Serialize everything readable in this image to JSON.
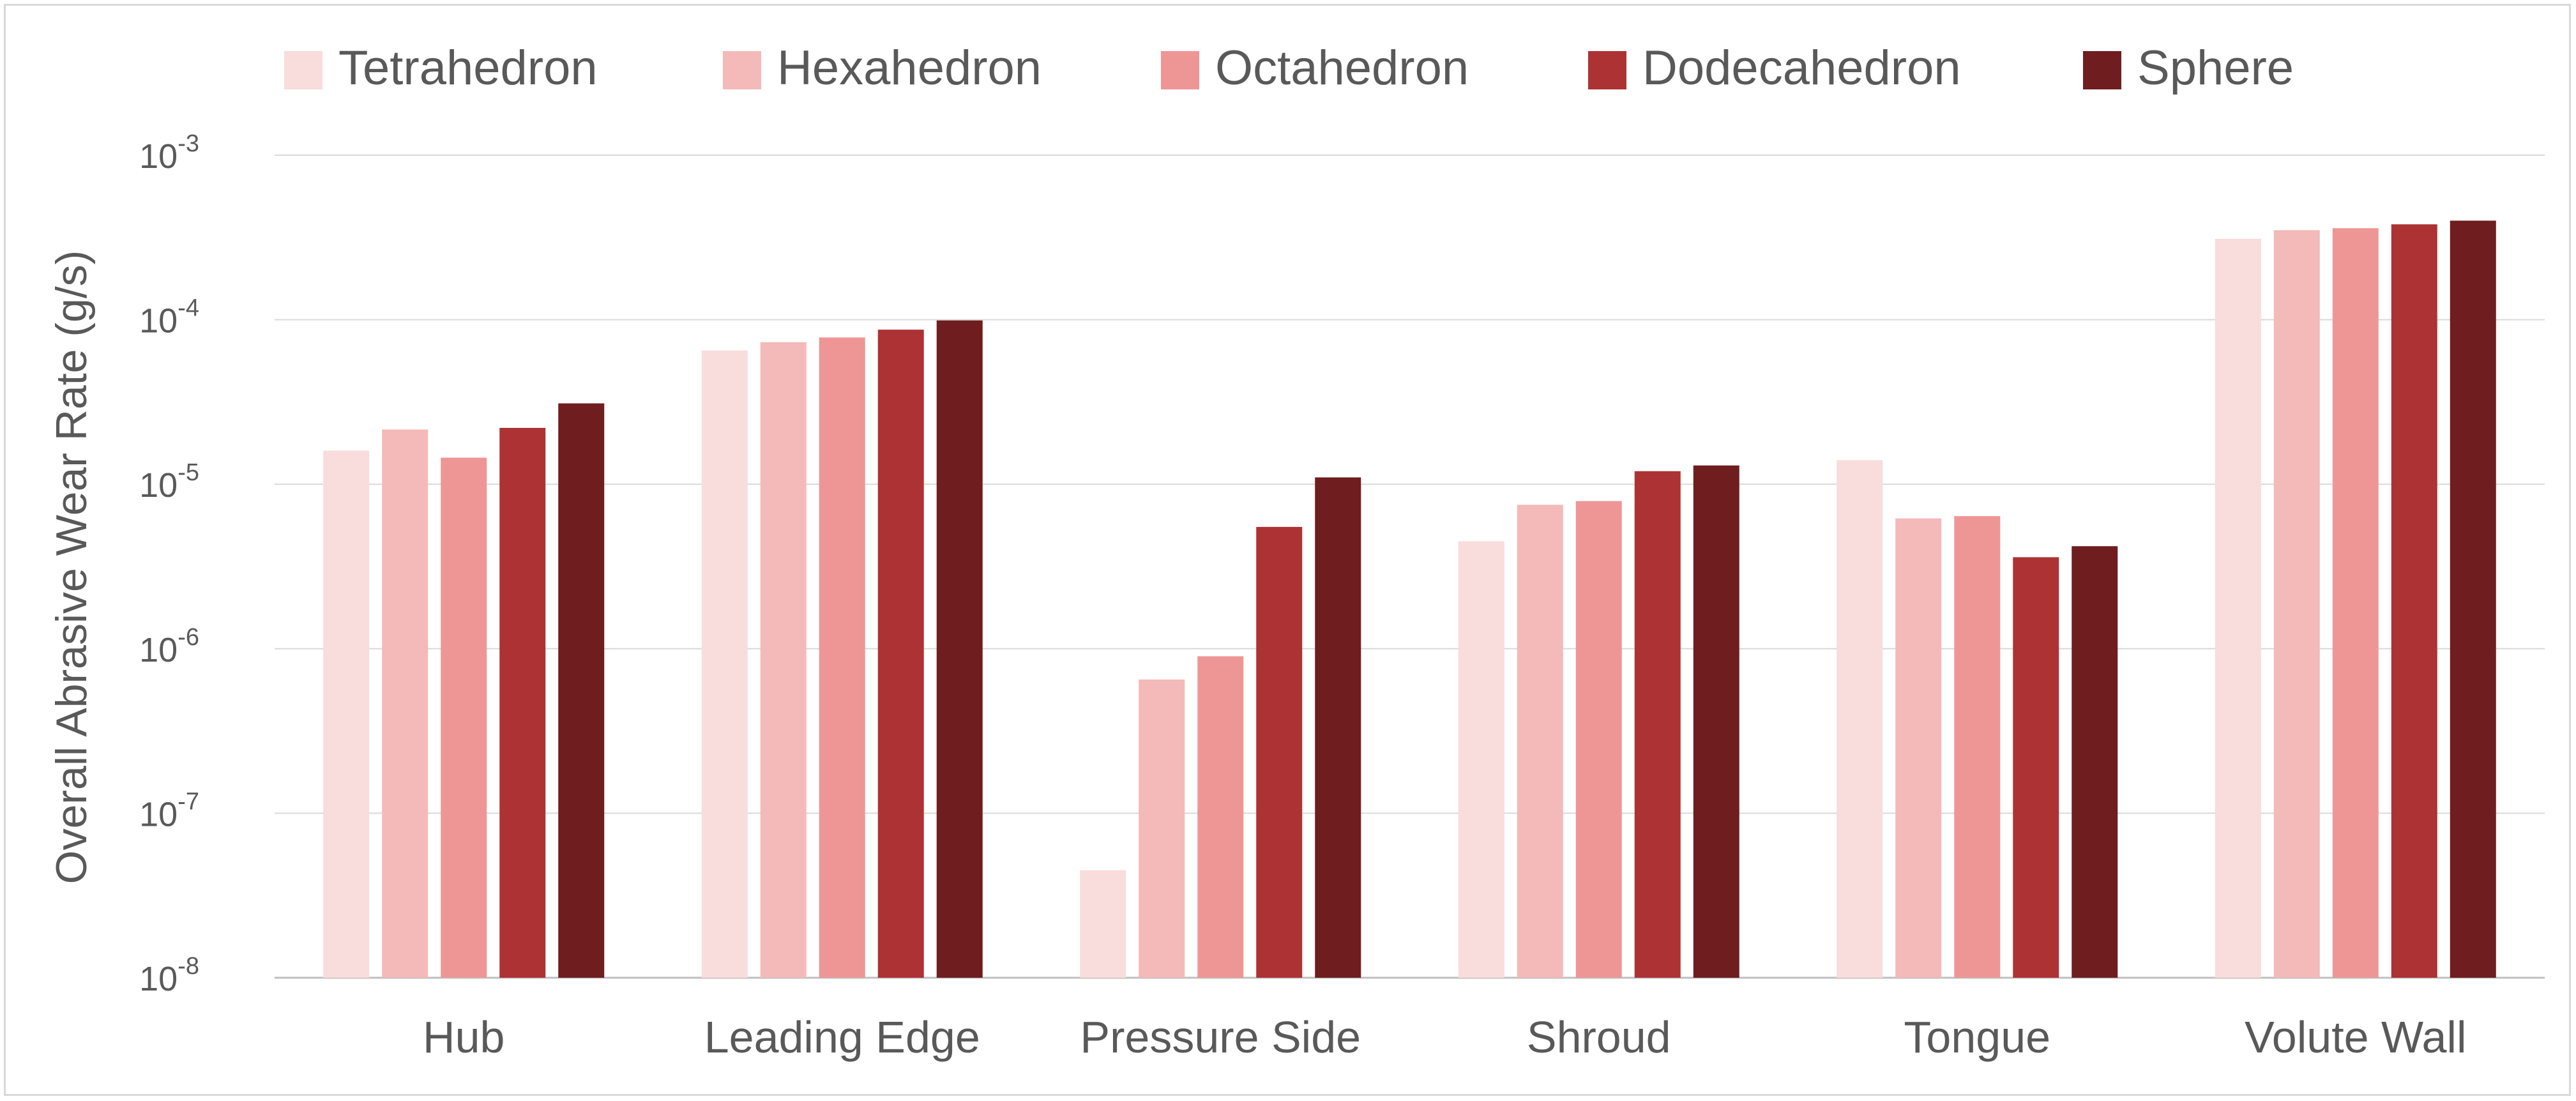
{
  "chart_data": {
    "type": "bar",
    "y_scale": "log",
    "ylabel": "Overall Abrasive Wear Rate (g/s)",
    "xlabel": "",
    "ylim": [
      1e-08,
      0.001
    ],
    "y_ticks": [
      {
        "base": "10",
        "exp": "-8"
      },
      {
        "base": "10",
        "exp": "-7"
      },
      {
        "base": "10",
        "exp": "-6"
      },
      {
        "base": "10",
        "exp": "-5"
      },
      {
        "base": "10",
        "exp": "-4"
      },
      {
        "base": "10",
        "exp": "-3"
      }
    ],
    "grid": true,
    "legend_position": "top",
    "categories": [
      "Hub",
      "Leading Edge",
      "Pressure Side",
      "Shroud",
      "Tongue",
      "Volute Wall"
    ],
    "series": [
      {
        "name": "Tetrahedron",
        "color": "#f9dcdc",
        "values": [
          1.6e-05,
          6.5e-05,
          4.5e-08,
          4.5e-06,
          1.4e-05,
          0.00031
        ]
      },
      {
        "name": "Hexahedron",
        "color": "#f4b9b9",
        "values": [
          2.15e-05,
          7.3e-05,
          6.5e-07,
          7.5e-06,
          6.2e-06,
          0.00035
        ]
      },
      {
        "name": "Octahedron",
        "color": "#ee9696",
        "values": [
          1.45e-05,
          7.8e-05,
          9e-07,
          7.9e-06,
          6.4e-06,
          0.00036
        ]
      },
      {
        "name": "Dodecahedron",
        "color": "#ad3234",
        "values": [
          2.2e-05,
          8.7e-05,
          5.5e-06,
          1.2e-05,
          3.6e-06,
          0.00038
        ]
      },
      {
        "name": "Sphere",
        "color": "#6f1d1f",
        "values": [
          3.1e-05,
          9.9e-05,
          1.1e-05,
          1.3e-05,
          4.2e-06,
          0.0004
        ]
      }
    ]
  }
}
